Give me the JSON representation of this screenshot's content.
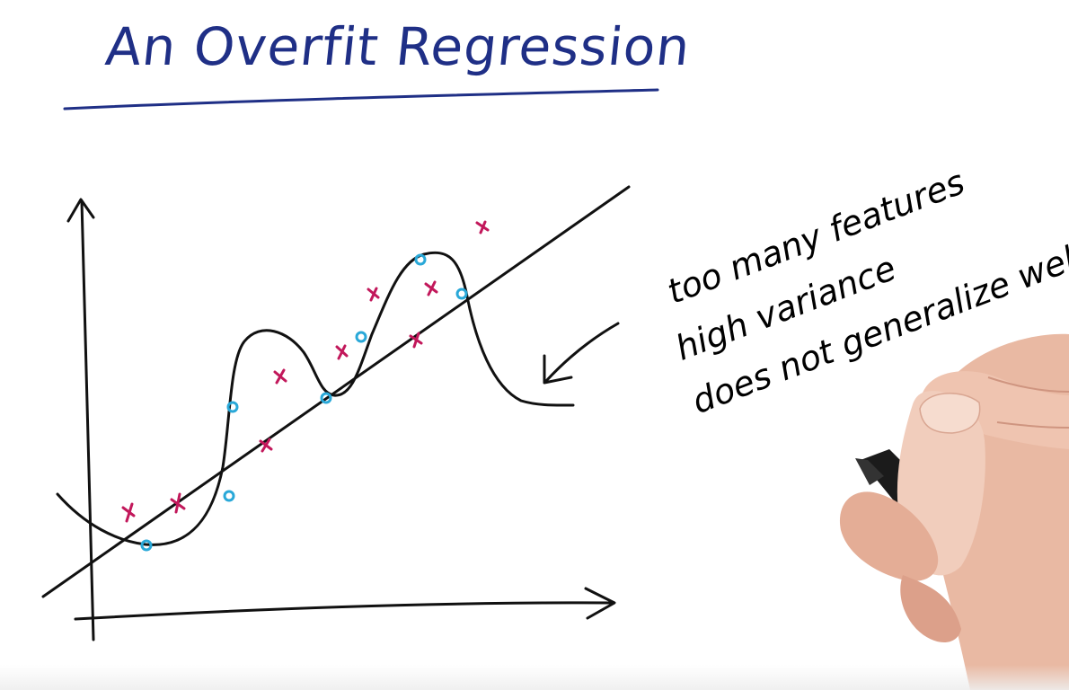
{
  "title": "An Overfit Regression",
  "annotations": {
    "line1": "too many features",
    "line2": "high variance",
    "line3": "does not generalize well"
  },
  "colors": {
    "title_ink": "#1f2f86",
    "ink": "#111111",
    "x_marker": "#c2185b",
    "o_marker": "#29a8d8"
  },
  "illustration": {
    "hand": "hand-holding-marker"
  }
}
